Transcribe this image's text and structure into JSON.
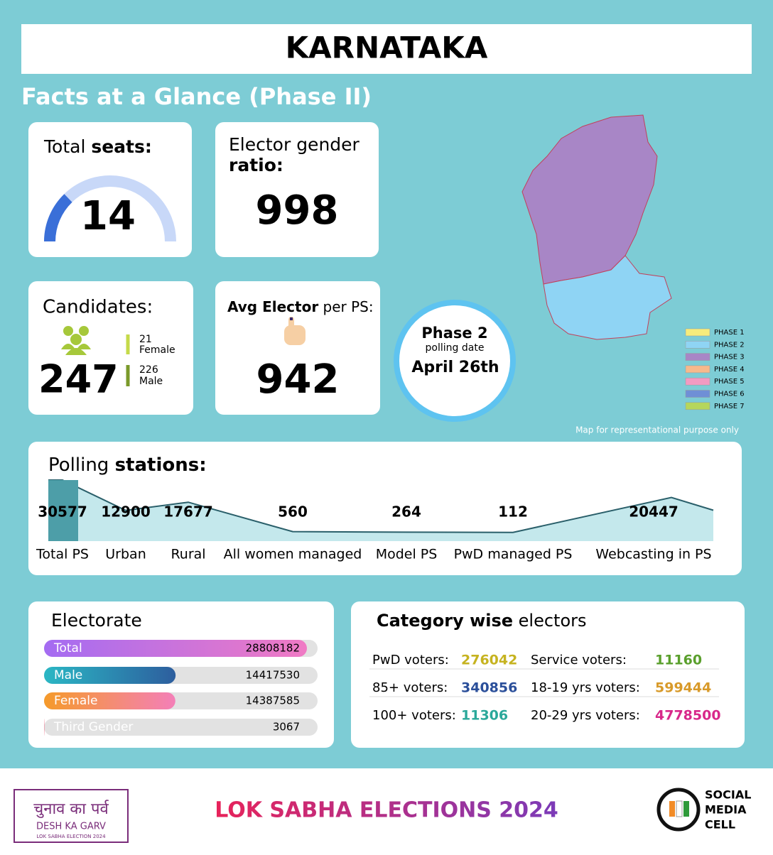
{
  "header": {
    "title": "KARNATAKA",
    "subtitle": "Facts at a Glance (Phase II)"
  },
  "seats": {
    "label": "Total ",
    "label_bold": "seats:",
    "value": 14
  },
  "gender_ratio": {
    "label": "Elector gender",
    "label_bold": "ratio:",
    "value": 998
  },
  "candidates": {
    "label": "Candidates:",
    "total": 247,
    "female": 21,
    "female_label": "Female",
    "male": 226,
    "male_label": "Male"
  },
  "avg_elector": {
    "label_bold": "Avg Elector",
    "label": " per PS:",
    "value": 942
  },
  "phase": {
    "title": "Phase 2",
    "subtitle": "polling date",
    "date": "April 26th"
  },
  "map": {
    "legend": [
      {
        "label": "PHASE 1",
        "color": "#f6ec7c"
      },
      {
        "label": "PHASE 2",
        "color": "#8fd4f4"
      },
      {
        "label": "PHASE 3",
        "color": "#a886c6"
      },
      {
        "label": "PHASE 4",
        "color": "#f6b98c"
      },
      {
        "label": "PHASE 5",
        "color": "#f29bc2"
      },
      {
        "label": "PHASE 6",
        "color": "#6f8fd6"
      },
      {
        "label": "PHASE 7",
        "color": "#b6d65c"
      }
    ],
    "note": "Map for representational purpose only"
  },
  "polling": {
    "label": "Polling ",
    "label_bold": "stations:",
    "items": [
      {
        "label": "Total PS",
        "value": 30577
      },
      {
        "label": "Urban",
        "value": 12900
      },
      {
        "label": "Rural",
        "value": 17677
      },
      {
        "label": "All women managed",
        "value": 560
      },
      {
        "label": "Model PS",
        "value": 264
      },
      {
        "label": "PwD managed PS",
        "value": 112
      },
      {
        "label": "Webcasting in PS",
        "value": 20447
      }
    ]
  },
  "electorate": {
    "title": "Electorate",
    "rows": [
      {
        "label": "Total",
        "value": 28808182
      },
      {
        "label": "Male",
        "value": 14417530
      },
      {
        "label": "Female",
        "value": 14387585
      },
      {
        "label": "Third Gender",
        "value": 3067
      }
    ]
  },
  "category": {
    "title_bold": "Category wise",
    "title": " electors",
    "rows": [
      [
        {
          "label": "PwD voters:",
          "value": 276042,
          "color": "#c6b320"
        },
        {
          "label": "Service voters:",
          "value": 11160,
          "color": "#5a9f2c"
        }
      ],
      [
        {
          "label": "85+ voters:",
          "value": 340856,
          "color": "#2b4f9a"
        },
        {
          "label": "18-19 yrs voters:",
          "value": 599444,
          "color": "#d89a2a"
        }
      ],
      [
        {
          "label": "100+ voters:",
          "value": 11306,
          "color": "#2aa89a"
        },
        {
          "label": "20-29 yrs voters:",
          "value": 4778500,
          "color": "#d8288a"
        }
      ]
    ]
  },
  "footer": {
    "logo_hindi": "चुनाव का पर्व",
    "logo_english": "DESH KA GARV",
    "logo_sub": "LOK SABHA ELECTION 2024",
    "title": "LOK SABHA ELECTIONS 2024",
    "cell": [
      "SOCIAL",
      "MEDIA",
      "CELL"
    ]
  }
}
